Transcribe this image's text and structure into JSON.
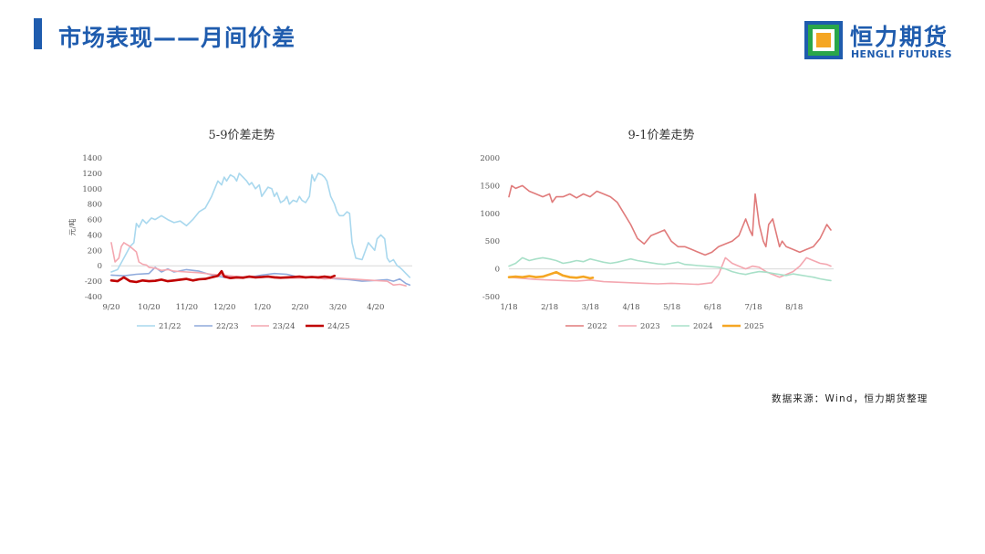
{
  "header": {
    "title": "市场表现——月间价差",
    "logo_cn": "恒力期货",
    "logo_en": "HENGLI FUTURES"
  },
  "source": "数据来源：Wind，恒力期货整理",
  "colors": {
    "brand": "#1f5cae",
    "logo_orange": "#f5a623",
    "logo_green": "#2aa64a"
  },
  "chart_data": [
    {
      "type": "line",
      "title": "5-9价差走势",
      "ylabel": "元/吨",
      "ylim": [
        -400,
        1400
      ],
      "yticks": [
        1400,
        1200,
        1000,
        800,
        600,
        400,
        200,
        0,
        -200,
        -400
      ],
      "xticks": [
        "9/20",
        "10/20",
        "11/20",
        "12/20",
        "1/20",
        "2/20",
        "3/20",
        "4/20"
      ],
      "xlim": [
        0,
        240
      ],
      "legend_position": "bottom",
      "grid": false,
      "series": [
        {
          "name": "21/22",
          "color": "#a9d8ee",
          "width": 1.6,
          "x": [
            0,
            5,
            10,
            15,
            18,
            20,
            22,
            25,
            28,
            32,
            35,
            40,
            45,
            50,
            55,
            60,
            65,
            70,
            75,
            80,
            85,
            88,
            90,
            92,
            95,
            98,
            100,
            102,
            105,
            108,
            110,
            112,
            115,
            118,
            120,
            122,
            125,
            128,
            130,
            132,
            135,
            138,
            140,
            142,
            145,
            148,
            150,
            152,
            155,
            158,
            160,
            162,
            165,
            168,
            170,
            172,
            175,
            178,
            180,
            182,
            185,
            188,
            190,
            192,
            195,
            200,
            205,
            210,
            212,
            215,
            218,
            220,
            222,
            225,
            228,
            230,
            232,
            235,
            238
          ],
          "y": [
            -80,
            -50,
            100,
            250,
            300,
            550,
            500,
            600,
            550,
            620,
            600,
            650,
            600,
            560,
            580,
            520,
            600,
            700,
            750,
            900,
            1100,
            1050,
            1150,
            1100,
            1180,
            1150,
            1100,
            1200,
            1150,
            1100,
            1050,
            1080,
            1000,
            1050,
            900,
            950,
            1020,
            1000,
            900,
            950,
            820,
            850,
            900,
            800,
            850,
            830,
            900,
            850,
            820,
            900,
            1180,
            1100,
            1200,
            1180,
            1150,
            1100,
            900,
            800,
            700,
            650,
            650,
            700,
            680,
            300,
            100,
            80,
            300,
            200,
            350,
            400,
            350,
            100,
            50,
            80,
            0,
            -20,
            -50,
            -100,
            -150
          ]
        },
        {
          "name": "22/23",
          "color": "#8faadc",
          "width": 1.6,
          "x": [
            0,
            10,
            20,
            30,
            35,
            40,
            45,
            50,
            60,
            70,
            80,
            90,
            100,
            110,
            120,
            130,
            140,
            150,
            160,
            170,
            180,
            190,
            200,
            210,
            220,
            225,
            230,
            235,
            238
          ],
          "y": [
            -120,
            -130,
            -110,
            -100,
            -20,
            -80,
            -40,
            -80,
            -50,
            -70,
            -120,
            -150,
            -140,
            -150,
            -120,
            -100,
            -110,
            -150,
            -140,
            -160,
            -170,
            -180,
            -200,
            -190,
            -180,
            -200,
            -170,
            -230,
            -250
          ]
        },
        {
          "name": "23/24",
          "color": "#f4a7b0",
          "width": 1.6,
          "x": [
            0,
            3,
            6,
            8,
            10,
            15,
            20,
            22,
            25,
            28,
            30,
            35,
            40,
            45,
            50,
            60,
            70,
            80,
            90,
            100,
            110,
            120,
            130,
            140,
            150,
            160,
            170,
            180,
            190,
            200,
            210,
            220,
            225,
            230,
            235
          ],
          "y": [
            300,
            50,
            100,
            250,
            300,
            250,
            180,
            50,
            20,
            10,
            -20,
            -30,
            -60,
            -50,
            -70,
            -80,
            -90,
            -110,
            -120,
            -140,
            -150,
            -150,
            -140,
            -160,
            -160,
            -150,
            -170,
            -160,
            -170,
            -180,
            -190,
            -200,
            -250,
            -240,
            -260
          ]
        },
        {
          "name": "24/25",
          "color": "#c00000",
          "width": 2.6,
          "x": [
            0,
            5,
            10,
            15,
            20,
            25,
            30,
            35,
            40,
            45,
            50,
            55,
            60,
            65,
            70,
            75,
            80,
            85,
            88,
            90,
            95,
            100,
            105,
            110,
            115,
            120,
            125,
            130,
            135,
            140,
            145,
            150,
            155,
            160,
            165,
            170,
            175,
            178
          ],
          "y": [
            -190,
            -200,
            -150,
            -200,
            -210,
            -190,
            -200,
            -195,
            -180,
            -200,
            -190,
            -180,
            -170,
            -190,
            -175,
            -170,
            -150,
            -130,
            -70,
            -140,
            -160,
            -150,
            -155,
            -140,
            -150,
            -145,
            -140,
            -150,
            -155,
            -150,
            -145,
            -140,
            -150,
            -145,
            -150,
            -140,
            -150,
            -130
          ]
        }
      ]
    },
    {
      "type": "line",
      "title": "9-1价差走势",
      "ylim": [
        -500,
        2000
      ],
      "yticks": [
        2000,
        1500,
        1000,
        500,
        0,
        -500
      ],
      "xticks": [
        "1/18",
        "2/18",
        "3/18",
        "4/18",
        "5/18",
        "6/18",
        "7/18",
        "8/18"
      ],
      "xlim": [
        0,
        240
      ],
      "legend_position": "bottom",
      "grid": false,
      "series": [
        {
          "name": "2022",
          "color": "#e07b7b",
          "width": 1.6,
          "x": [
            0,
            2,
            5,
            10,
            15,
            20,
            25,
            30,
            32,
            35,
            40,
            45,
            50,
            55,
            60,
            65,
            70,
            75,
            80,
            85,
            90,
            95,
            100,
            105,
            110,
            115,
            120,
            125,
            130,
            135,
            140,
            145,
            150,
            155,
            160,
            165,
            170,
            175,
            178,
            180,
            182,
            185,
            188,
            190,
            192,
            195,
            198,
            200,
            202,
            205,
            210,
            215,
            220,
            225,
            230,
            235,
            238
          ],
          "y": [
            1300,
            1500,
            1450,
            1500,
            1400,
            1350,
            1300,
            1350,
            1200,
            1300,
            1300,
            1350,
            1280,
            1350,
            1300,
            1400,
            1350,
            1300,
            1200,
            1000,
            800,
            550,
            450,
            600,
            650,
            700,
            500,
            400,
            400,
            350,
            300,
            250,
            300,
            400,
            450,
            500,
            600,
            900,
            700,
            600,
            1350,
            800,
            500,
            400,
            800,
            900,
            600,
            400,
            500,
            400,
            350,
            300,
            350,
            400,
            550,
            800,
            700
          ]
        },
        {
          "name": "2023",
          "color": "#f4a7b0",
          "width": 1.6,
          "x": [
            0,
            10,
            20,
            30,
            40,
            50,
            60,
            70,
            80,
            90,
            100,
            110,
            120,
            130,
            140,
            150,
            155,
            160,
            165,
            170,
            175,
            180,
            185,
            190,
            195,
            200,
            205,
            210,
            215,
            220,
            225,
            230,
            235,
            238
          ],
          "y": [
            -150,
            -170,
            -190,
            -200,
            -210,
            -220,
            -200,
            -230,
            -240,
            -250,
            -260,
            -270,
            -260,
            -270,
            -280,
            -250,
            -100,
            200,
            100,
            50,
            0,
            50,
            30,
            -50,
            -100,
            -150,
            -100,
            -50,
            50,
            200,
            150,
            100,
            80,
            50
          ]
        },
        {
          "name": "2024",
          "color": "#a8e0c8",
          "width": 1.6,
          "x": [
            0,
            5,
            10,
            15,
            20,
            25,
            30,
            35,
            40,
            45,
            50,
            55,
            60,
            65,
            70,
            75,
            80,
            85,
            90,
            95,
            100,
            105,
            110,
            115,
            120,
            125,
            130,
            135,
            140,
            145,
            150,
            155,
            160,
            165,
            170,
            175,
            180,
            185,
            190,
            195,
            200,
            205,
            210,
            215,
            220,
            225,
            230,
            235,
            238
          ],
          "y": [
            50,
            100,
            200,
            150,
            180,
            200,
            180,
            150,
            100,
            120,
            150,
            130,
            180,
            150,
            120,
            100,
            120,
            150,
            180,
            150,
            130,
            110,
            90,
            80,
            100,
            120,
            80,
            70,
            60,
            50,
            40,
            30,
            0,
            -50,
            -80,
            -100,
            -70,
            -50,
            -60,
            -80,
            -100,
            -120,
            -90,
            -110,
            -130,
            -150,
            -180,
            -200,
            -210
          ]
        },
        {
          "name": "2025",
          "color": "#f5a623",
          "width": 2.6,
          "x": [
            0,
            5,
            10,
            15,
            20,
            25,
            30,
            35,
            40,
            45,
            50,
            55,
            60,
            62
          ],
          "y": [
            -150,
            -140,
            -150,
            -130,
            -150,
            -140,
            -100,
            -60,
            -120,
            -150,
            -160,
            -140,
            -170,
            -160
          ]
        }
      ]
    }
  ]
}
